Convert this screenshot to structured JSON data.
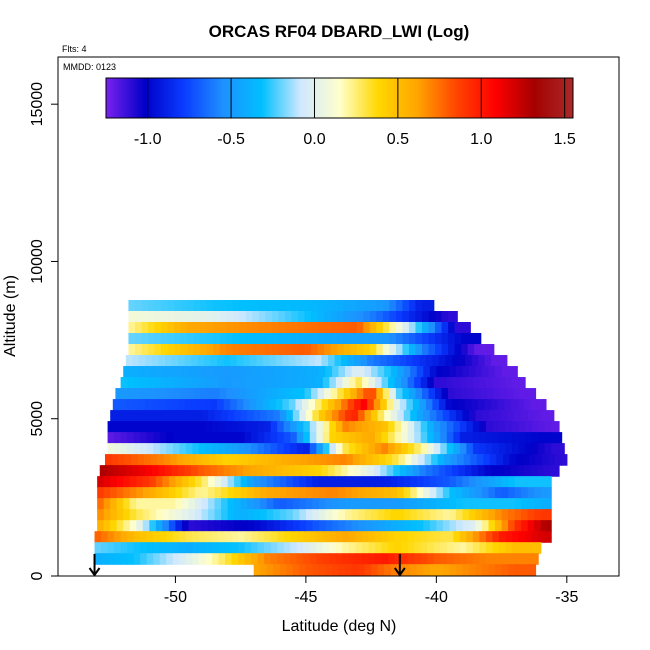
{
  "chart_data": {
    "type": "heatmap",
    "title": "ORCAS RF04 DBARD_LWI (Log)",
    "subtitle_flights": "Flts: 4",
    "subtitle_date": "MMDD: 0123",
    "xlabel": "Latitude (deg N)",
    "ylabel": "Altitude (m)",
    "xlim": [
      -54.5,
      -33.0
    ],
    "ylim": [
      0,
      16500
    ],
    "x_ticks": [
      -50,
      -45,
      -40,
      -35
    ],
    "y_ticks": [
      0,
      5000,
      10000,
      15000
    ],
    "x_tick_labels": [
      "-50",
      "-45",
      "-40",
      "-35"
    ],
    "y_tick_labels": [
      "0",
      "5000",
      "10000",
      "15000"
    ],
    "colorbar": {
      "range": [
        -1.25,
        1.55
      ],
      "ticks": [
        -1.0,
        -0.5,
        0.0,
        0.5,
        1.0,
        1.5
      ],
      "tick_labels": [
        "-1.0",
        "-0.5",
        "0.0",
        "0.5",
        "1.0",
        "1.5"
      ],
      "colors": [
        "#7a22ee",
        "#0000c8",
        "#0a3cff",
        "#1e90ff",
        "#00bfff",
        "#cfe8ff",
        "#ffffcc",
        "#ffd700",
        "#ffa500",
        "#ff4500",
        "#ff0000",
        "#a50000",
        "#aa2a2a"
      ]
    },
    "arrows_latitude": [
      -53.1,
      -41.4
    ],
    "grid": false,
    "rows": [
      {
        "alt": 8600,
        "lat_min": -51.8,
        "lat_max": -40.1,
        "values": [
          [
            -51.8,
            -0.2
          ],
          [
            -48.5,
            -0.3
          ],
          [
            -44.8,
            -0.35
          ],
          [
            -42.0,
            -0.5
          ],
          [
            -40.6,
            -0.9
          ]
        ]
      },
      {
        "alt": 8250,
        "lat_min": -51.8,
        "lat_max": -39.2,
        "values": [
          [
            -51.8,
            0.1
          ],
          [
            -48.5,
            0.0
          ],
          [
            -45.0,
            -0.3
          ],
          [
            -42.5,
            -0.6
          ],
          [
            -39.6,
            -1.1
          ]
        ]
      },
      {
        "alt": 7900,
        "lat_min": -51.8,
        "lat_max": -38.7,
        "values": [
          [
            -51.8,
            0.2
          ],
          [
            -49.5,
            0.6
          ],
          [
            -46.5,
            0.7
          ],
          [
            -43.0,
            0.8
          ],
          [
            -40.8,
            -0.2
          ],
          [
            -39.2,
            -1.1
          ]
        ]
      },
      {
        "alt": 7550,
        "lat_min": -51.8,
        "lat_max": -38.3,
        "values": [
          [
            -51.8,
            -0.2
          ],
          [
            -48.0,
            -0.3
          ],
          [
            -45.0,
            -0.4
          ],
          [
            -42.0,
            -0.5
          ],
          [
            -39.0,
            -1.0
          ]
        ]
      },
      {
        "alt": 7200,
        "lat_min": -51.8,
        "lat_max": -37.8,
        "values": [
          [
            -51.8,
            0.2
          ],
          [
            -48.0,
            0.7
          ],
          [
            -45.0,
            0.8
          ],
          [
            -42.5,
            0.4
          ],
          [
            -40.5,
            -0.6
          ],
          [
            -38.5,
            -1.2
          ]
        ]
      },
      {
        "alt": 6850,
        "lat_min": -51.9,
        "lat_max": -37.3,
        "values": [
          [
            -51.9,
            -0.1
          ],
          [
            -48.0,
            -0.3
          ],
          [
            -44.5,
            -0.1
          ],
          [
            -42.5,
            -0.6
          ],
          [
            -40.0,
            -0.9
          ],
          [
            -37.8,
            -1.2
          ]
        ]
      },
      {
        "alt": 6500,
        "lat_min": -52.0,
        "lat_max": -36.9,
        "values": [
          [
            -52.0,
            -0.4
          ],
          [
            -48.0,
            -0.5
          ],
          [
            -44.5,
            -0.4
          ],
          [
            -43.0,
            0.0
          ],
          [
            -41.8,
            -0.3
          ],
          [
            -40.0,
            -1.0
          ],
          [
            -37.4,
            -1.2
          ]
        ]
      },
      {
        "alt": 6150,
        "lat_min": -52.1,
        "lat_max": -36.6,
        "values": [
          [
            -52.1,
            -0.3
          ],
          [
            -48.0,
            -0.5
          ],
          [
            -44.5,
            -0.4
          ],
          [
            -43.0,
            0.3
          ],
          [
            -42.0,
            -0.2
          ],
          [
            -40.0,
            -1.1
          ],
          [
            -37.0,
            -1.2
          ]
        ]
      },
      {
        "alt": 5800,
        "lat_min": -52.3,
        "lat_max": -36.2,
        "values": [
          [
            -52.3,
            -0.5
          ],
          [
            -48.5,
            -0.6
          ],
          [
            -45.0,
            -0.3
          ],
          [
            -43.5,
            0.4
          ],
          [
            -42.5,
            0.9
          ],
          [
            -41.5,
            -0.2
          ],
          [
            -39.5,
            -1.1
          ],
          [
            -36.7,
            -1.2
          ]
        ]
      },
      {
        "alt": 5450,
        "lat_min": -52.4,
        "lat_max": -35.8,
        "values": [
          [
            -52.4,
            -0.7
          ],
          [
            -48.5,
            -0.8
          ],
          [
            -45.5,
            -0.2
          ],
          [
            -44.0,
            0.5
          ],
          [
            -42.8,
            1.1
          ],
          [
            -41.5,
            0.0
          ],
          [
            -39.5,
            -1.0
          ],
          [
            -36.3,
            -1.2
          ]
        ]
      },
      {
        "alt": 5100,
        "lat_min": -52.5,
        "lat_max": -35.5,
        "values": [
          [
            -52.5,
            -0.9
          ],
          [
            -49.0,
            -0.9
          ],
          [
            -46.0,
            -0.6
          ],
          [
            -44.5,
            0.4
          ],
          [
            -43.2,
            1.0
          ],
          [
            -42.0,
            0.2
          ],
          [
            -40.5,
            -0.5
          ],
          [
            -38.5,
            -1.1
          ],
          [
            -35.9,
            -1.2
          ]
        ]
      },
      {
        "alt": 4750,
        "lat_min": -52.6,
        "lat_max": -35.3,
        "values": [
          [
            -52.6,
            -1.0
          ],
          [
            -49.0,
            -1.0
          ],
          [
            -46.5,
            -0.9
          ],
          [
            -45.0,
            -0.3
          ],
          [
            -43.5,
            0.7
          ],
          [
            -42.0,
            0.5
          ],
          [
            -40.0,
            -0.5
          ],
          [
            -38.0,
            -1.1
          ],
          [
            -35.6,
            -1.2
          ]
        ]
      },
      {
        "alt": 4400,
        "lat_min": -52.6,
        "lat_max": -35.2,
        "values": [
          [
            -52.6,
            -1.2
          ],
          [
            -50.0,
            -1.0
          ],
          [
            -47.5,
            -1.0
          ],
          [
            -45.5,
            -0.7
          ],
          [
            -44.0,
            0.4
          ],
          [
            -42.5,
            0.6
          ],
          [
            -41.0,
            0.0
          ],
          [
            -39.0,
            -0.9
          ],
          [
            -36.0,
            -1.0
          ]
        ]
      },
      {
        "alt": 4050,
        "lat_min": -52.6,
        "lat_max": -35.1,
        "values": [
          [
            -52.6,
            0.1
          ],
          [
            -50.0,
            -0.2
          ],
          [
            -47.5,
            -0.5
          ],
          [
            -45.0,
            -0.9
          ],
          [
            -43.5,
            0.3
          ],
          [
            -42.0,
            0.7
          ],
          [
            -40.5,
            0.2
          ],
          [
            -38.5,
            -0.8
          ],
          [
            -35.5,
            -1.1
          ]
        ]
      },
      {
        "alt": 3700,
        "lat_min": -52.7,
        "lat_max": -35.0,
        "values": [
          [
            -52.7,
            0.9
          ],
          [
            -50.5,
            0.7
          ],
          [
            -48.0,
            0.4
          ],
          [
            -45.5,
            0.6
          ],
          [
            -43.5,
            0.7
          ],
          [
            -41.5,
            0.3
          ],
          [
            -39.5,
            -0.5
          ],
          [
            -37.0,
            -1.0
          ],
          [
            -35.3,
            -1.1
          ]
        ]
      },
      {
        "alt": 3350,
        "lat_min": -52.9,
        "lat_max": -35.3,
        "values": [
          [
            -52.9,
            1.3
          ],
          [
            -51.0,
            1.1
          ],
          [
            -49.0,
            0.8
          ],
          [
            -47.0,
            0.6
          ],
          [
            -44.5,
            0.4
          ],
          [
            -42.5,
            0.0
          ],
          [
            -40.5,
            -0.6
          ],
          [
            -38.0,
            -1.0
          ],
          [
            -35.6,
            -1.1
          ]
        ]
      },
      {
        "alt": 3000,
        "lat_min": -53.0,
        "lat_max": -35.6,
        "values": [
          [
            -53.0,
            1.2
          ],
          [
            -51.0,
            0.9
          ],
          [
            -49.0,
            0.3
          ],
          [
            -47.0,
            -0.5
          ],
          [
            -44.5,
            -0.9
          ],
          [
            -42.0,
            -0.9
          ],
          [
            -39.5,
            -0.7
          ],
          [
            -37.0,
            -0.3
          ],
          [
            -35.8,
            -0.3
          ]
        ]
      },
      {
        "alt": 2650,
        "lat_min": -53.0,
        "lat_max": -35.6,
        "values": [
          [
            -53.0,
            0.9
          ],
          [
            -51.0,
            0.6
          ],
          [
            -49.0,
            0.2
          ],
          [
            -46.5,
            0.6
          ],
          [
            -44.0,
            0.7
          ],
          [
            -41.5,
            0.5
          ],
          [
            -39.5,
            -0.3
          ],
          [
            -37.5,
            -0.7
          ],
          [
            -35.8,
            -0.5
          ]
        ]
      },
      {
        "alt": 2300,
        "lat_min": -53.0,
        "lat_max": -35.6,
        "values": [
          [
            -53.0,
            0.8
          ],
          [
            -51.5,
            0.2
          ],
          [
            -50.0,
            0.2
          ],
          [
            -48.0,
            -0.3
          ],
          [
            -46.0,
            -0.7
          ],
          [
            -43.5,
            -0.5
          ],
          [
            -41.5,
            -0.5
          ],
          [
            -39.0,
            -0.3
          ],
          [
            -37.0,
            -0.3
          ],
          [
            -35.8,
            -0.4
          ]
        ]
      },
      {
        "alt": 1950,
        "lat_min": -53.0,
        "lat_max": -35.6,
        "values": [
          [
            -53.0,
            0.7
          ],
          [
            -51.5,
            0.3
          ],
          [
            -49.5,
            0.0
          ],
          [
            -47.5,
            -0.4
          ],
          [
            -45.5,
            -0.2
          ],
          [
            -43.5,
            0.2
          ],
          [
            -41.5,
            0.4
          ],
          [
            -39.5,
            0.2
          ],
          [
            -37.5,
            0.7
          ],
          [
            -36.0,
            0.9
          ]
        ]
      },
      {
        "alt": 1600,
        "lat_min": -53.0,
        "lat_max": -35.6,
        "values": [
          [
            -53.0,
            0.6
          ],
          [
            -51.5,
            0.1
          ],
          [
            -49.5,
            -1.1
          ],
          [
            -47.0,
            -1.0
          ],
          [
            -44.5,
            -0.7
          ],
          [
            -42.5,
            -0.5
          ],
          [
            -40.5,
            -0.3
          ],
          [
            -38.5,
            0.0
          ],
          [
            -37.0,
            0.9
          ],
          [
            -35.8,
            1.3
          ]
        ]
      },
      {
        "alt": 1250,
        "lat_min": -53.1,
        "lat_max": -35.6,
        "values": [
          [
            -53.1,
            0.8
          ],
          [
            -51.5,
            0.5
          ],
          [
            -49.5,
            0.3
          ],
          [
            -47.5,
            0.2
          ],
          [
            -45.5,
            0.4
          ],
          [
            -43.5,
            0.6
          ],
          [
            -41.5,
            0.4
          ],
          [
            -39.5,
            0.3
          ],
          [
            -37.5,
            1.0
          ],
          [
            -35.8,
            1.2
          ]
        ]
      },
      {
        "alt": 900,
        "lat_min": -53.1,
        "lat_max": -36.0,
        "values": [
          [
            -53.1,
            -0.2
          ],
          [
            -51.5,
            -0.3
          ],
          [
            -49.5,
            -0.4
          ],
          [
            -47.5,
            -0.3
          ],
          [
            -45.5,
            -0.1
          ],
          [
            -43.5,
            0.2
          ],
          [
            -41.5,
            0.4
          ],
          [
            -39.0,
            0.2
          ],
          [
            -37.0,
            0.5
          ],
          [
            -36.2,
            0.5
          ]
        ]
      },
      {
        "alt": 550,
        "lat_min": -53.1,
        "lat_max": -36.1,
        "values": [
          [
            -53.1,
            -0.4
          ],
          [
            -51.5,
            -0.3
          ],
          [
            -49.5,
            0.0
          ],
          [
            -48.5,
            0.2
          ],
          [
            -46.5,
            0.7
          ],
          [
            -44.0,
            0.9
          ],
          [
            -42.0,
            1.0
          ],
          [
            -40.0,
            0.8
          ],
          [
            -38.0,
            0.7
          ],
          [
            -36.3,
            0.7
          ]
        ]
      },
      {
        "alt": 200,
        "lat_min": -47.0,
        "lat_max": -36.2,
        "values": [
          [
            -47.0,
            0.6
          ],
          [
            -45.0,
            0.8
          ],
          [
            -43.0,
            0.9
          ],
          [
            -41.5,
            0.7
          ],
          [
            -40.0,
            0.6
          ],
          [
            -38.5,
            0.7
          ],
          [
            -37.0,
            0.8
          ],
          [
            -36.4,
            0.8
          ]
        ]
      }
    ]
  }
}
